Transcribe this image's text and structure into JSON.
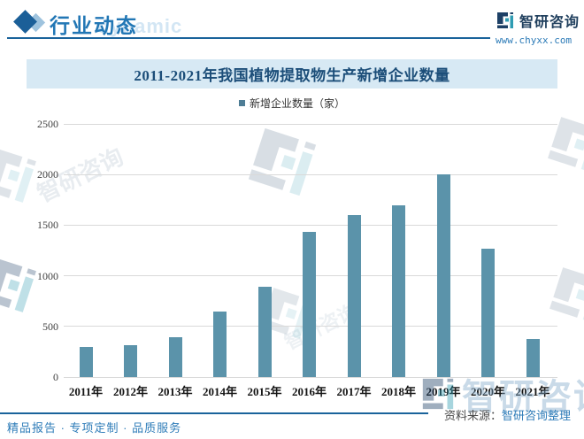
{
  "header": {
    "section_title": "行业动态",
    "background_word": "dynamic",
    "brand_name": "智研咨询",
    "brand_site": "www.chyxx.com"
  },
  "chart_data": {
    "type": "bar",
    "title": "2011-2021年我国植物提取物生产新增企业数量",
    "legend": "新增企业数量（家）",
    "categories": [
      "2011年",
      "2012年",
      "2013年",
      "2014年",
      "2015年",
      "2016年",
      "2017年",
      "2018年",
      "2019年",
      "2020年",
      "2021年"
    ],
    "values": [
      300,
      315,
      390,
      645,
      890,
      1430,
      1600,
      1700,
      2000,
      1270,
      380
    ],
    "xlabel": "",
    "ylabel": "",
    "ylim": [
      0,
      2500
    ],
    "yticks": [
      0,
      500,
      1000,
      1500,
      2000,
      2500
    ],
    "grid": true,
    "legend_position": "top",
    "bar_color": "#5b93aa",
    "legend_marker_color": "#4e7d95"
  },
  "footer": {
    "source_label": "资料来源：",
    "source_value": "智研咨询整理",
    "services": "精品报告 · 专项定制 · 品质服务"
  },
  "watermarks": {
    "logo_text": "智研咨询"
  },
  "colors": {
    "accent_blue": "#2277b5",
    "title_navy": "#1c4e79",
    "banner_bg": "#d7e9f4",
    "bar": "#5b93aa",
    "gridline": "#d9d9d9"
  }
}
